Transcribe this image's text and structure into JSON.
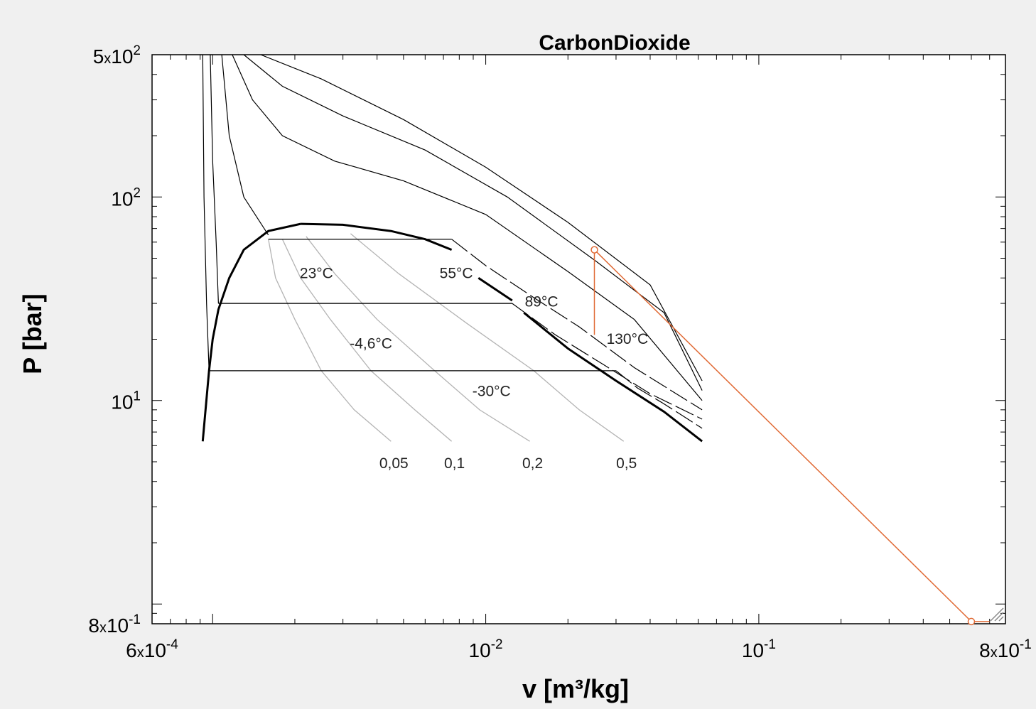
{
  "chart_data": {
    "type": "line",
    "title": "CarbonDioxide",
    "xlabel": "v [m³/kg]",
    "ylabel": "P [bar]",
    "x_scale": "log",
    "y_scale": "log",
    "xlim": [
      0.0006,
      0.8
    ],
    "ylim": [
      0.8,
      500
    ],
    "x_ticks": [
      {
        "value": 0.0006,
        "mant": "6",
        "exp": "-4"
      },
      {
        "value": 0.01,
        "mant": "",
        "exp": "-2"
      },
      {
        "value": 0.1,
        "mant": "",
        "exp": "-1"
      },
      {
        "value": 0.8,
        "mant": "8",
        "exp": "-1"
      }
    ],
    "y_ticks": [
      {
        "value": 500,
        "mant": "5",
        "exp": "2"
      },
      {
        "value": 100,
        "mant": "",
        "exp": "2"
      },
      {
        "value": 10,
        "mant": "",
        "exp": "1"
      },
      {
        "value": 0.8,
        "mant": "8",
        "exp": "-1"
      }
    ],
    "saturation_dome": {
      "liquid": [
        [
          0.00092,
          6.3
        ],
        [
          0.00097,
          14
        ],
        [
          0.001,
          20
        ],
        [
          0.00105,
          28
        ],
        [
          0.00115,
          40
        ],
        [
          0.0013,
          55
        ],
        [
          0.0016,
          68
        ],
        [
          0.0021,
          73.8
        ]
      ],
      "vapor": [
        [
          0.0021,
          73.8
        ],
        [
          0.003,
          73
        ],
        [
          0.0045,
          68
        ],
        [
          0.006,
          62
        ],
        [
          0.0075,
          55
        ]
      ]
    },
    "saturated_vapor_segments": [
      [
        [
          0.0094,
          40
        ],
        [
          0.0125,
          31
        ]
      ],
      [
        [
          0.0138,
          27
        ],
        [
          0.02,
          18
        ],
        [
          0.03,
          12.5
        ],
        [
          0.045,
          8.8
        ],
        [
          0.062,
          6.3
        ]
      ]
    ],
    "isotherms": [
      {
        "label": "-30°C",
        "points": [
          [
            0.00092,
            500
          ],
          [
            0.00093,
            100
          ],
          [
            0.00095,
            30
          ],
          [
            0.00097,
            14
          ]
        ],
        "tail": [
          [
            0.03,
            14
          ],
          [
            0.036,
            11.5
          ],
          [
            0.044,
            9.8
          ],
          [
            0.052,
            8.5
          ],
          [
            0.062,
            7.3
          ]
        ]
      },
      {
        "label": "-4,6°C",
        "points": [
          [
            0.00098,
            500
          ],
          [
            0.001,
            150
          ],
          [
            0.00103,
            60
          ],
          [
            0.00105,
            30
          ]
        ],
        "tail": [
          [
            0.0125,
            30
          ],
          [
            0.018,
            21
          ],
          [
            0.027,
            15
          ],
          [
            0.04,
            10.8
          ],
          [
            0.062,
            8.1
          ]
        ]
      },
      {
        "label": "23°C",
        "points": [
          [
            0.00108,
            500
          ],
          [
            0.00115,
            200
          ],
          [
            0.0013,
            100
          ],
          [
            0.0016,
            65
          ]
        ],
        "tail": [
          [
            0.0075,
            62
          ],
          [
            0.01,
            46
          ],
          [
            0.015,
            32
          ],
          [
            0.022,
            23
          ],
          [
            0.035,
            14.5
          ],
          [
            0.062,
            9
          ]
        ]
      },
      {
        "label": "55°C",
        "points": [
          [
            0.00118,
            500
          ],
          [
            0.0014,
            300
          ],
          [
            0.0018,
            200
          ],
          [
            0.0028,
            150
          ],
          [
            0.005,
            120
          ],
          [
            0.01,
            82
          ],
          [
            0.02,
            43
          ],
          [
            0.035,
            25
          ],
          [
            0.062,
            10
          ]
        ]
      },
      {
        "label": "89°C",
        "points": [
          [
            0.0013,
            500
          ],
          [
            0.0018,
            350
          ],
          [
            0.003,
            250
          ],
          [
            0.006,
            170
          ],
          [
            0.012,
            100
          ],
          [
            0.025,
            49
          ],
          [
            0.045,
            27
          ],
          [
            0.062,
            11.2
          ]
        ]
      },
      {
        "label": "130°C",
        "points": [
          [
            0.0015,
            500
          ],
          [
            0.0025,
            380
          ],
          [
            0.005,
            240
          ],
          [
            0.01,
            140
          ],
          [
            0.02,
            75
          ],
          [
            0.04,
            37
          ],
          [
            0.062,
            12.5
          ]
        ]
      }
    ],
    "quality_lines": [
      {
        "label": "0,05",
        "points": [
          [
            0.0016,
            62
          ],
          [
            0.0017,
            40
          ],
          [
            0.002,
            25
          ],
          [
            0.0025,
            14
          ],
          [
            0.0033,
            9
          ],
          [
            0.0045,
            6.3
          ]
        ]
      },
      {
        "label": "0,1",
        "points": [
          [
            0.0018,
            62
          ],
          [
            0.0021,
            40
          ],
          [
            0.0027,
            25
          ],
          [
            0.0038,
            14
          ],
          [
            0.0055,
            9
          ],
          [
            0.0075,
            6.3
          ]
        ]
      },
      {
        "label": "0,2",
        "points": [
          [
            0.0022,
            64
          ],
          [
            0.0028,
            42
          ],
          [
            0.004,
            25
          ],
          [
            0.0065,
            14
          ],
          [
            0.0095,
            9
          ],
          [
            0.0145,
            6.3
          ]
        ]
      },
      {
        "label": "0,5",
        "points": [
          [
            0.0032,
            66
          ],
          [
            0.0048,
            42
          ],
          [
            0.0085,
            24
          ],
          [
            0.015,
            14
          ],
          [
            0.022,
            9
          ],
          [
            0.032,
            6.3
          ]
        ]
      }
    ],
    "isobars": [
      {
        "pressure": 62,
        "v_liquid": 0.0016,
        "v_vapor": 0.0075
      },
      {
        "pressure": 30,
        "v_liquid": 0.00105,
        "v_vapor": 0.0125
      },
      {
        "pressure": 14,
        "v_liquid": 0.00097,
        "v_vapor": 0.03
      }
    ],
    "process": {
      "color": "#e06a35",
      "points": [
        [
          0.025,
          21
        ],
        [
          0.025,
          55
        ],
        [
          0.6,
          0.82
        ],
        [
          0.7,
          0.82
        ]
      ],
      "markers": [
        [
          0.025,
          55
        ],
        [
          0.6,
          0.82
        ]
      ]
    },
    "grid": false
  }
}
